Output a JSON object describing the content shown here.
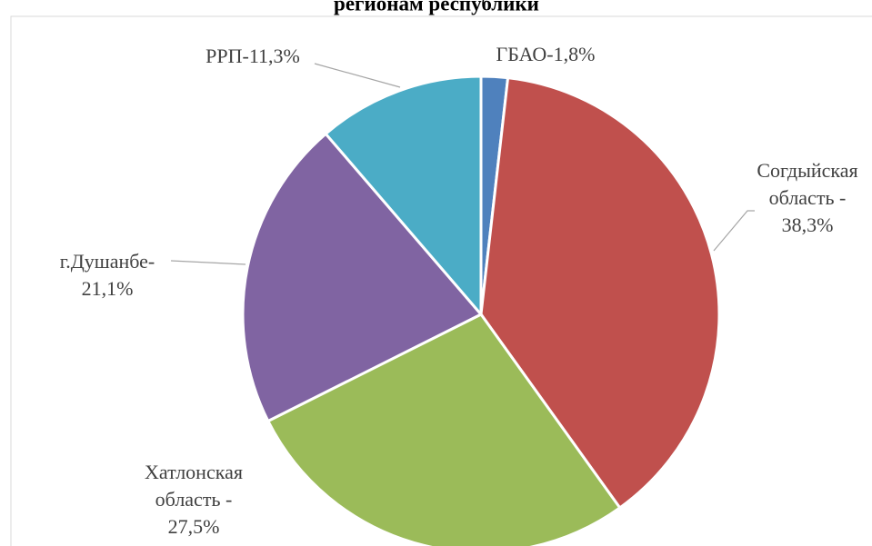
{
  "chart_data": {
    "type": "pie",
    "title": "регионам республики",
    "values": [
      1.8,
      38.3,
      27.5,
      21.1,
      11.3
    ],
    "value_labels": [
      [
        "ГБАО-1,8%"
      ],
      [
        "Согдыйская",
        "область -",
        "38,3%"
      ],
      [
        "Хатлонская",
        "область -",
        "27,5%"
      ],
      [
        "г.Душанбе-",
        "21,1%"
      ],
      [
        "РРП-11,3%"
      ]
    ],
    "colors": [
      "#4f81bd",
      "#c0504d",
      "#9bbb59",
      "#8064a2",
      "#4bacc6"
    ]
  }
}
